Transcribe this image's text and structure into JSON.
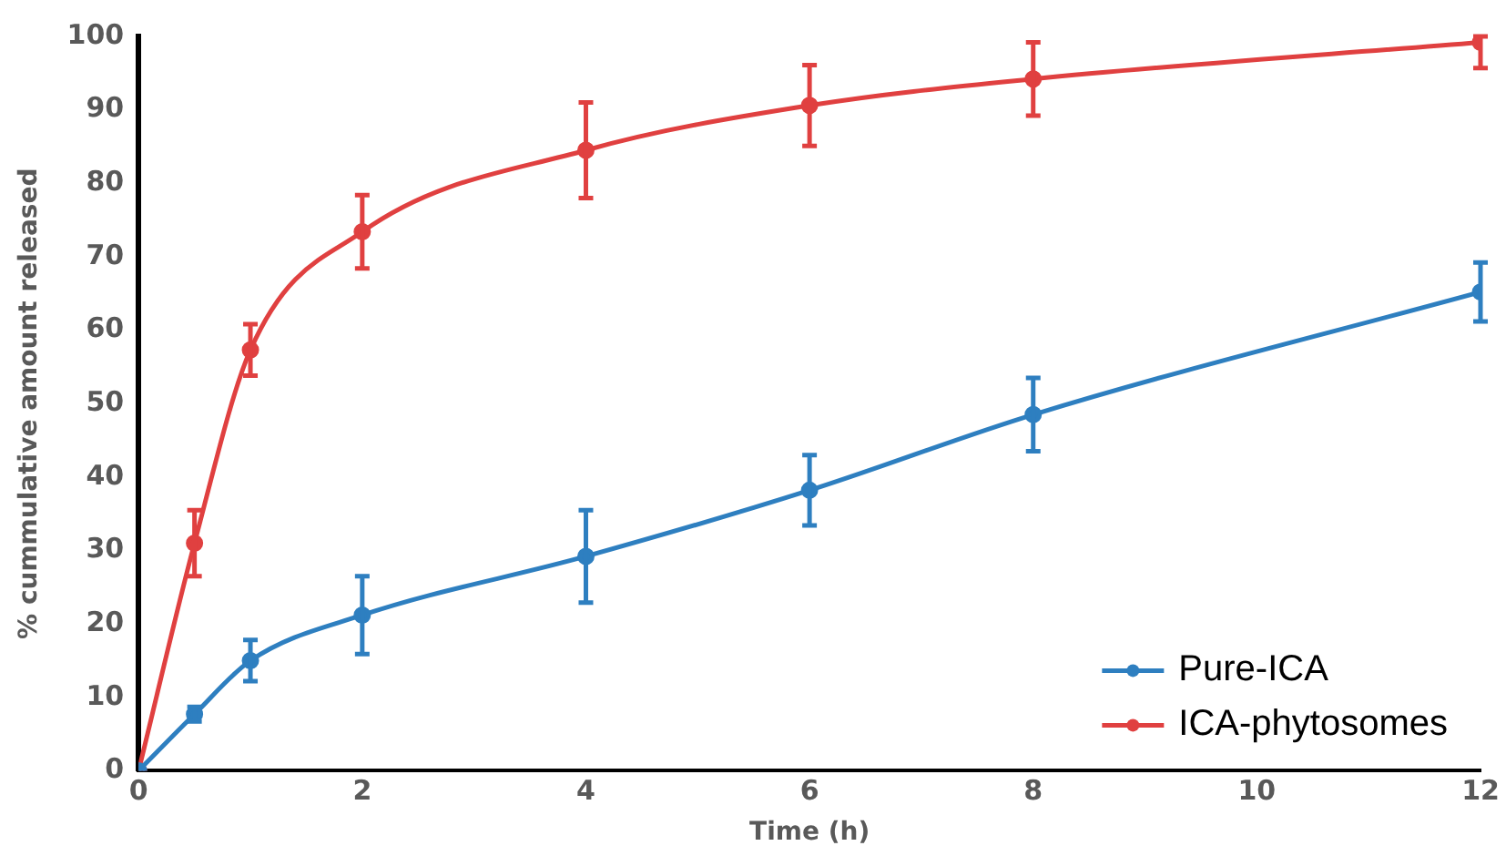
{
  "chart_data": {
    "type": "line",
    "xlabel": "Time (h)",
    "ylabel": "% cummulative amount released",
    "x": [
      0,
      0.5,
      1,
      2,
      4,
      6,
      8,
      12
    ],
    "series": [
      {
        "name": "Pure-ICA",
        "color": "#2e7fc0",
        "values": [
          0,
          7.7,
          15,
          21.2,
          29.2,
          38.2,
          48.5,
          65.2
        ],
        "errors": [
          null,
          1,
          2.8,
          5.3,
          6.3,
          4.8,
          5,
          4
        ]
      },
      {
        "name": "ICA-phytosomes",
        "color": "#e04040",
        "values": [
          0,
          31,
          57.3,
          73.4,
          84.5,
          90.6,
          94.2,
          99.2
        ],
        "errors": [
          null,
          4.5,
          3.5,
          5,
          6.5,
          5.5,
          5,
          [
            95.7,
            100
          ]
        ]
      }
    ],
    "xlim": [
      0,
      12
    ],
    "xticks": [
      0,
      2,
      4,
      6,
      8,
      10,
      12
    ],
    "ylim": [
      0,
      100
    ],
    "yticks": [
      0,
      10,
      20,
      30,
      40,
      50,
      60,
      70,
      80,
      90,
      100
    ],
    "grid": false,
    "legend": "bottom right",
    "marker": "circle",
    "line_style": "solid"
  }
}
